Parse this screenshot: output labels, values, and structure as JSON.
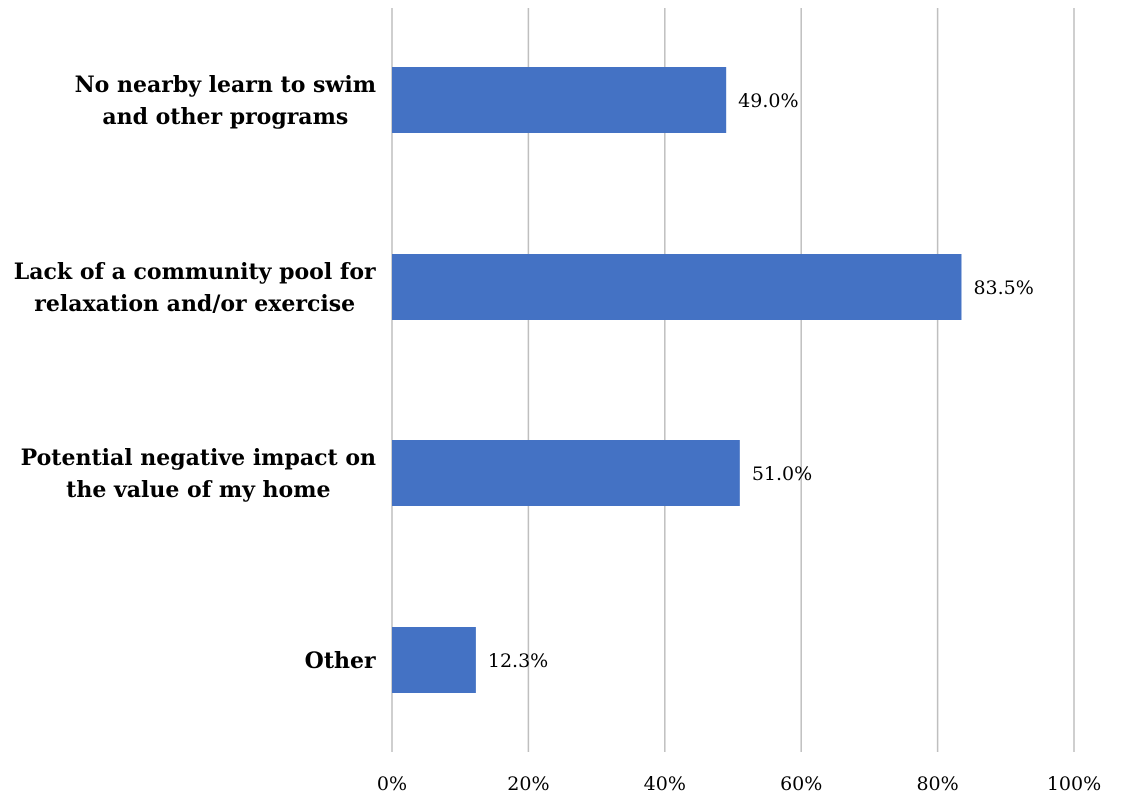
{
  "chart_data": {
    "type": "bar",
    "orientation": "horizontal",
    "title": "",
    "xlabel": "",
    "ylabel": "",
    "categories": [
      [
        "No nearby learn to swim",
        "and other programs"
      ],
      [
        "Lack of a community pool for",
        "relaxation and/or exercise"
      ],
      [
        "Potential negative impact on",
        "the value of my home"
      ],
      [
        "Other"
      ]
    ],
    "values": [
      49.0,
      83.5,
      51.0,
      12.3
    ],
    "data_labels": [
      "49.0%",
      "83.5%",
      "51.0%",
      "12.3%"
    ],
    "xlim": [
      0,
      100
    ],
    "ticks": [
      0,
      20,
      40,
      60,
      80,
      100
    ],
    "tick_labels": [
      "0%",
      "20%",
      "40%",
      "60%",
      "80%",
      "100%"
    ],
    "grid": true,
    "legend": "none",
    "bar_color": "#4472c4",
    "grid_color": "#bfbfbf"
  }
}
